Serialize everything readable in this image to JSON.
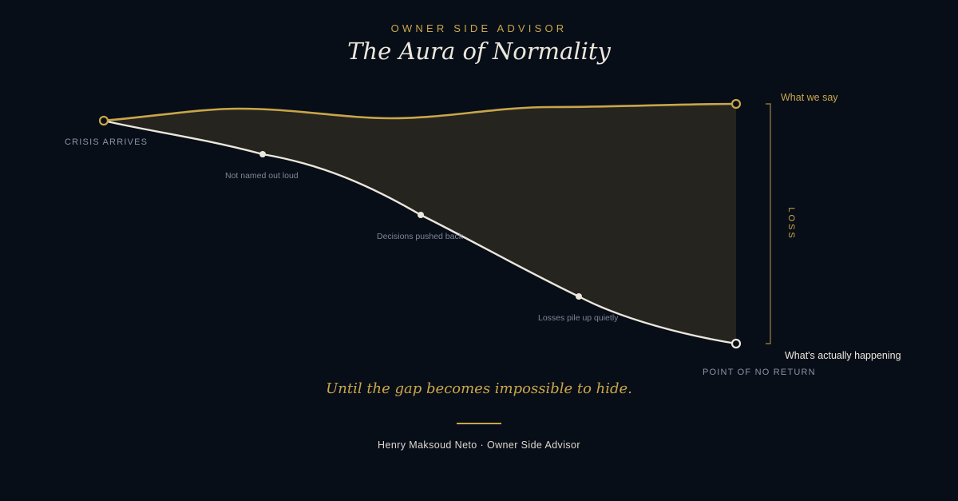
{
  "header": {
    "kicker": "OWNER SIDE ADVISOR",
    "title": "The Aura of Normality"
  },
  "diagram": {
    "start_label": "CRISIS ARRIVES",
    "end_label": "POINT OF NO RETURN",
    "gap_label": "LOSS",
    "series": [
      {
        "name": "What we say",
        "color": "#c9a64a"
      },
      {
        "name": "What's actually happening",
        "color": "#ece7dc"
      }
    ],
    "steps": [
      {
        "label": "Not named out loud"
      },
      {
        "label": "Decisions pushed back"
      },
      {
        "label": "Losses pile up quietly"
      }
    ],
    "colors": {
      "background": "#080e18",
      "gap_fill": "#26241f",
      "accent": "#c9a64a",
      "muted": "#8c94a6"
    }
  },
  "footer": {
    "tagline": "Until the gap becomes impossible to hide.",
    "byline": "Henry Maksoud Neto · Owner Side Advisor"
  }
}
